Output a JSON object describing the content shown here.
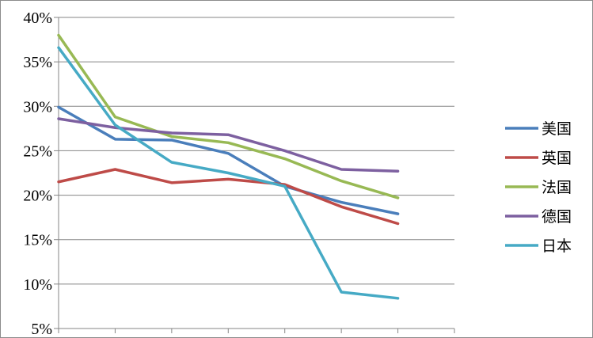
{
  "chart_data": {
    "type": "line",
    "title": "",
    "xlabel": "",
    "ylabel": "",
    "y_tick_labels": [
      "5%",
      "10%",
      "15%",
      "20%",
      "25%",
      "30%",
      "35%",
      "40%"
    ],
    "ylim": [
      5,
      40
    ],
    "x": [
      1,
      2,
      3,
      4,
      5,
      6,
      7
    ],
    "grid": true,
    "legend_position": "right",
    "series": [
      {
        "name": "美国",
        "color": "#4a7ebb",
        "values": [
          29.9,
          26.3,
          26.2,
          24.7,
          21.0,
          19.2,
          17.9
        ]
      },
      {
        "name": "英国",
        "color": "#be4b48",
        "values": [
          21.5,
          22.9,
          21.4,
          21.8,
          21.2,
          18.7,
          16.8
        ]
      },
      {
        "name": "法国",
        "color": "#98b954",
        "values": [
          38.0,
          28.8,
          26.6,
          25.9,
          24.1,
          21.6,
          19.7
        ]
      },
      {
        "name": "德国",
        "color": "#7d60a0",
        "values": [
          28.6,
          27.6,
          27.0,
          26.8,
          25.0,
          22.9,
          22.7
        ]
      },
      {
        "name": "日本",
        "color": "#46aac5",
        "values": [
          36.6,
          27.9,
          23.7,
          22.5,
          21.0,
          9.1,
          8.4
        ]
      }
    ]
  }
}
